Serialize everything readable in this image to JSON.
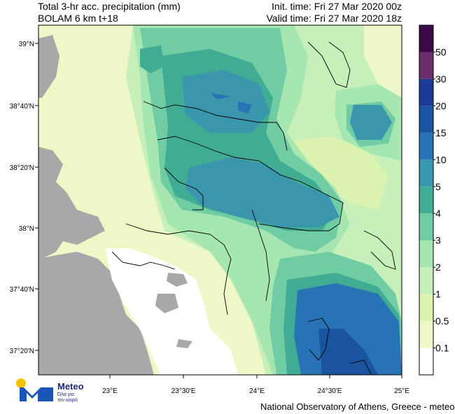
{
  "header": {
    "title_line1": "Total 3-hr acc. precipitation (mm)",
    "title_line2": "BOLAM 6 km t+18",
    "init_time": "Init. time: Fri 27 Mar 2020 00z",
    "valid_time": "Valid time: Fri 27 Mar 2020 18z"
  },
  "axes": {
    "lat_labels": [
      "39°N",
      "38°40'N",
      "38°20'N",
      "38°N",
      "37°40'N",
      "37°20'N"
    ],
    "lon_labels": [
      "23°E",
      "23°30'E",
      "24°E",
      "24°30'E",
      "25°E"
    ]
  },
  "colorbar": {
    "levels": [
      "0.1",
      "0.5",
      "1",
      "2",
      "3",
      "4",
      "5",
      "10",
      "15",
      "20",
      "30",
      "50"
    ],
    "colors": [
      "#ffffff",
      "#eef7c6",
      "#dcf2b0",
      "#c6efb9",
      "#a6e6b0",
      "#6fcca3",
      "#41ac94",
      "#3a96ad",
      "#2873b5",
      "#1a54a0",
      "#1a3c96",
      "#6b2f6b",
      "#3b0a4a"
    ]
  },
  "logo": {
    "name": "Meteo",
    "tagline_line1": "Όλα για",
    "tagline_line2": "τον καιρό"
  },
  "footer": {
    "credit": "National Observatory of Athens, Greece - meteo.gr"
  },
  "colors": {
    "land": "#a8a8a8",
    "coast": "#000000"
  }
}
